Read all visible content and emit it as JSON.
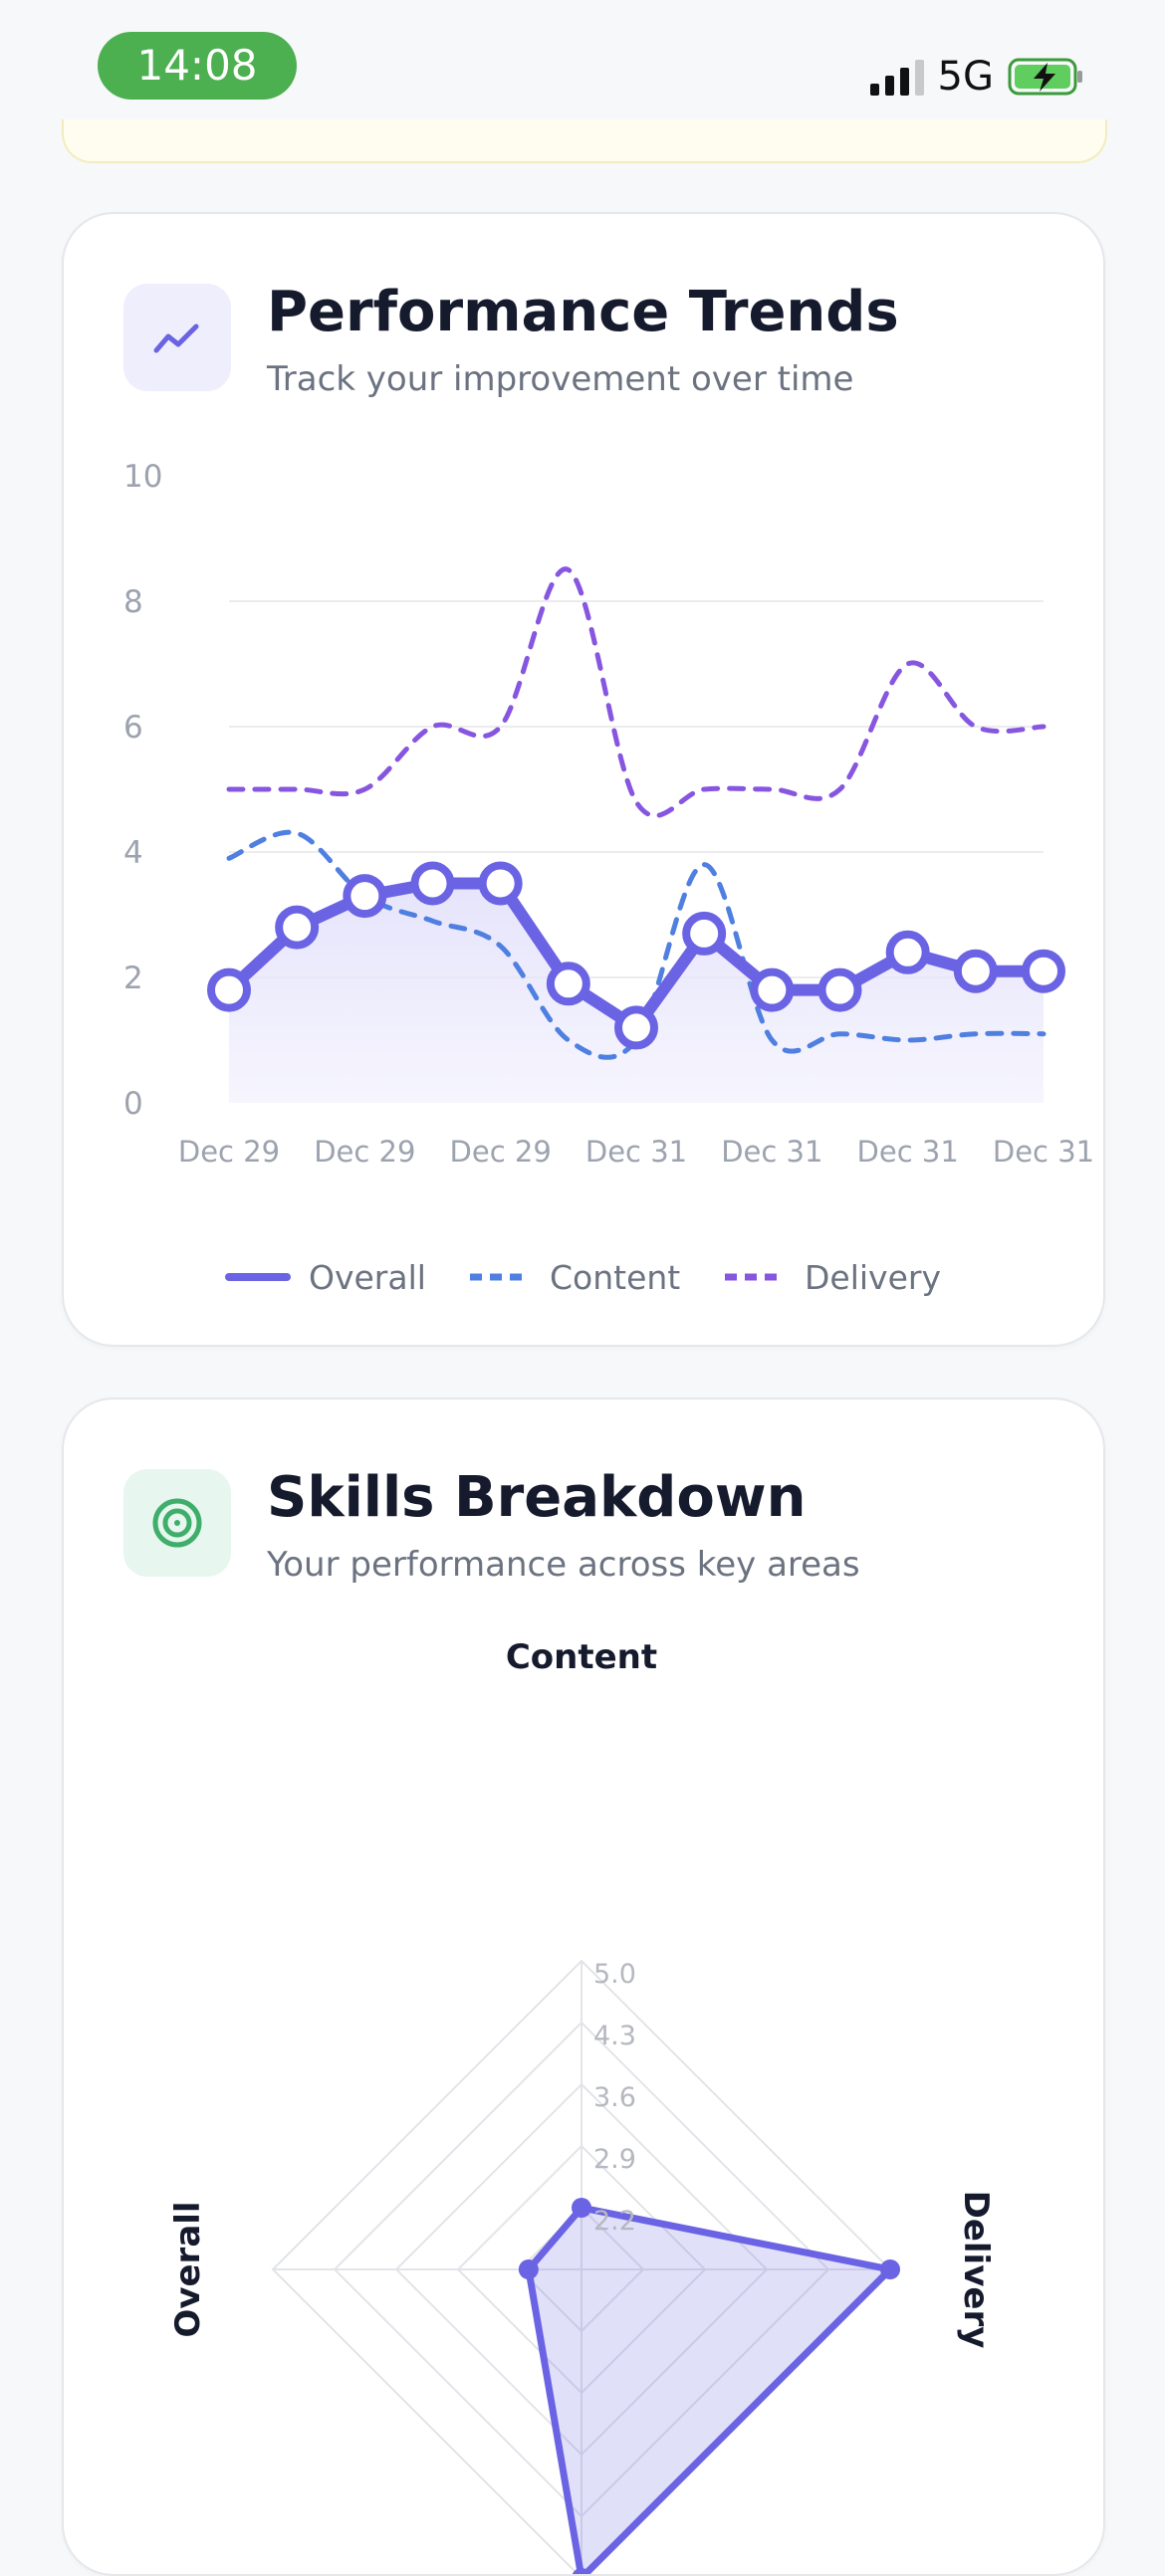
{
  "status_bar": {
    "time": "14:08",
    "network": "5G",
    "icons": [
      "signal-icon",
      "battery-charging-icon"
    ]
  },
  "colors": {
    "overall": "#6a63e3",
    "content": "#4f7fe0",
    "delivery": "#8656e0",
    "fill": "#e6e4fb",
    "grid": "#ececef",
    "time_pill": "#4caf50",
    "trend_icon_bg": "#efeefc",
    "target_icon_bg": "#e7f6ee"
  },
  "performance_card": {
    "title": "Performance Trends",
    "subtitle": "Track your improvement over time",
    "icon": "trend-line-icon"
  },
  "skills_card": {
    "title": "Skills Breakdown",
    "subtitle": "Your performance across key areas",
    "icon": "target-icon"
  },
  "chart_data": [
    {
      "type": "line",
      "ylim": [
        0,
        10
      ],
      "yticks": [
        "0",
        "2",
        "4",
        "6",
        "8",
        "10"
      ],
      "x_tick_labels": [
        "Dec 29",
        "Dec 29",
        "Dec 29",
        "Dec 31",
        "Dec 31",
        "Dec 31",
        "Dec 31"
      ],
      "legend_position": "bottom",
      "series": [
        {
          "name": "Overall",
          "style": "solid-markers",
          "values": [
            1.8,
            2.8,
            3.3,
            3.5,
            3.5,
            1.9,
            1.2,
            2.7,
            1.8,
            1.8,
            2.4,
            2.1,
            2.1
          ]
        },
        {
          "name": "Content",
          "style": "dashed",
          "values": [
            3.9,
            4.3,
            3.3,
            2.9,
            2.5,
            1.0,
            1.0,
            3.8,
            1.0,
            1.1,
            1.0,
            1.1,
            1.1
          ]
        },
        {
          "name": "Delivery",
          "style": "dashed",
          "values": [
            5.0,
            5.0,
            5.0,
            6.0,
            6.0,
            8.5,
            4.8,
            5.0,
            5.0,
            5.0,
            7.0,
            6.0,
            6.0
          ]
        }
      ]
    },
    {
      "type": "radar",
      "axes": [
        "Content",
        "Delivery",
        "Overall"
      ],
      "axis_count": 4,
      "radial_range": [
        1.5,
        5.0
      ],
      "radial_tick_labels": [
        "2.2",
        "2.9",
        "3.6",
        "4.3",
        "5.0"
      ],
      "series": [
        {
          "values": [
            2.2,
            5.0,
            5.0,
            2.1
          ]
        }
      ]
    }
  ]
}
